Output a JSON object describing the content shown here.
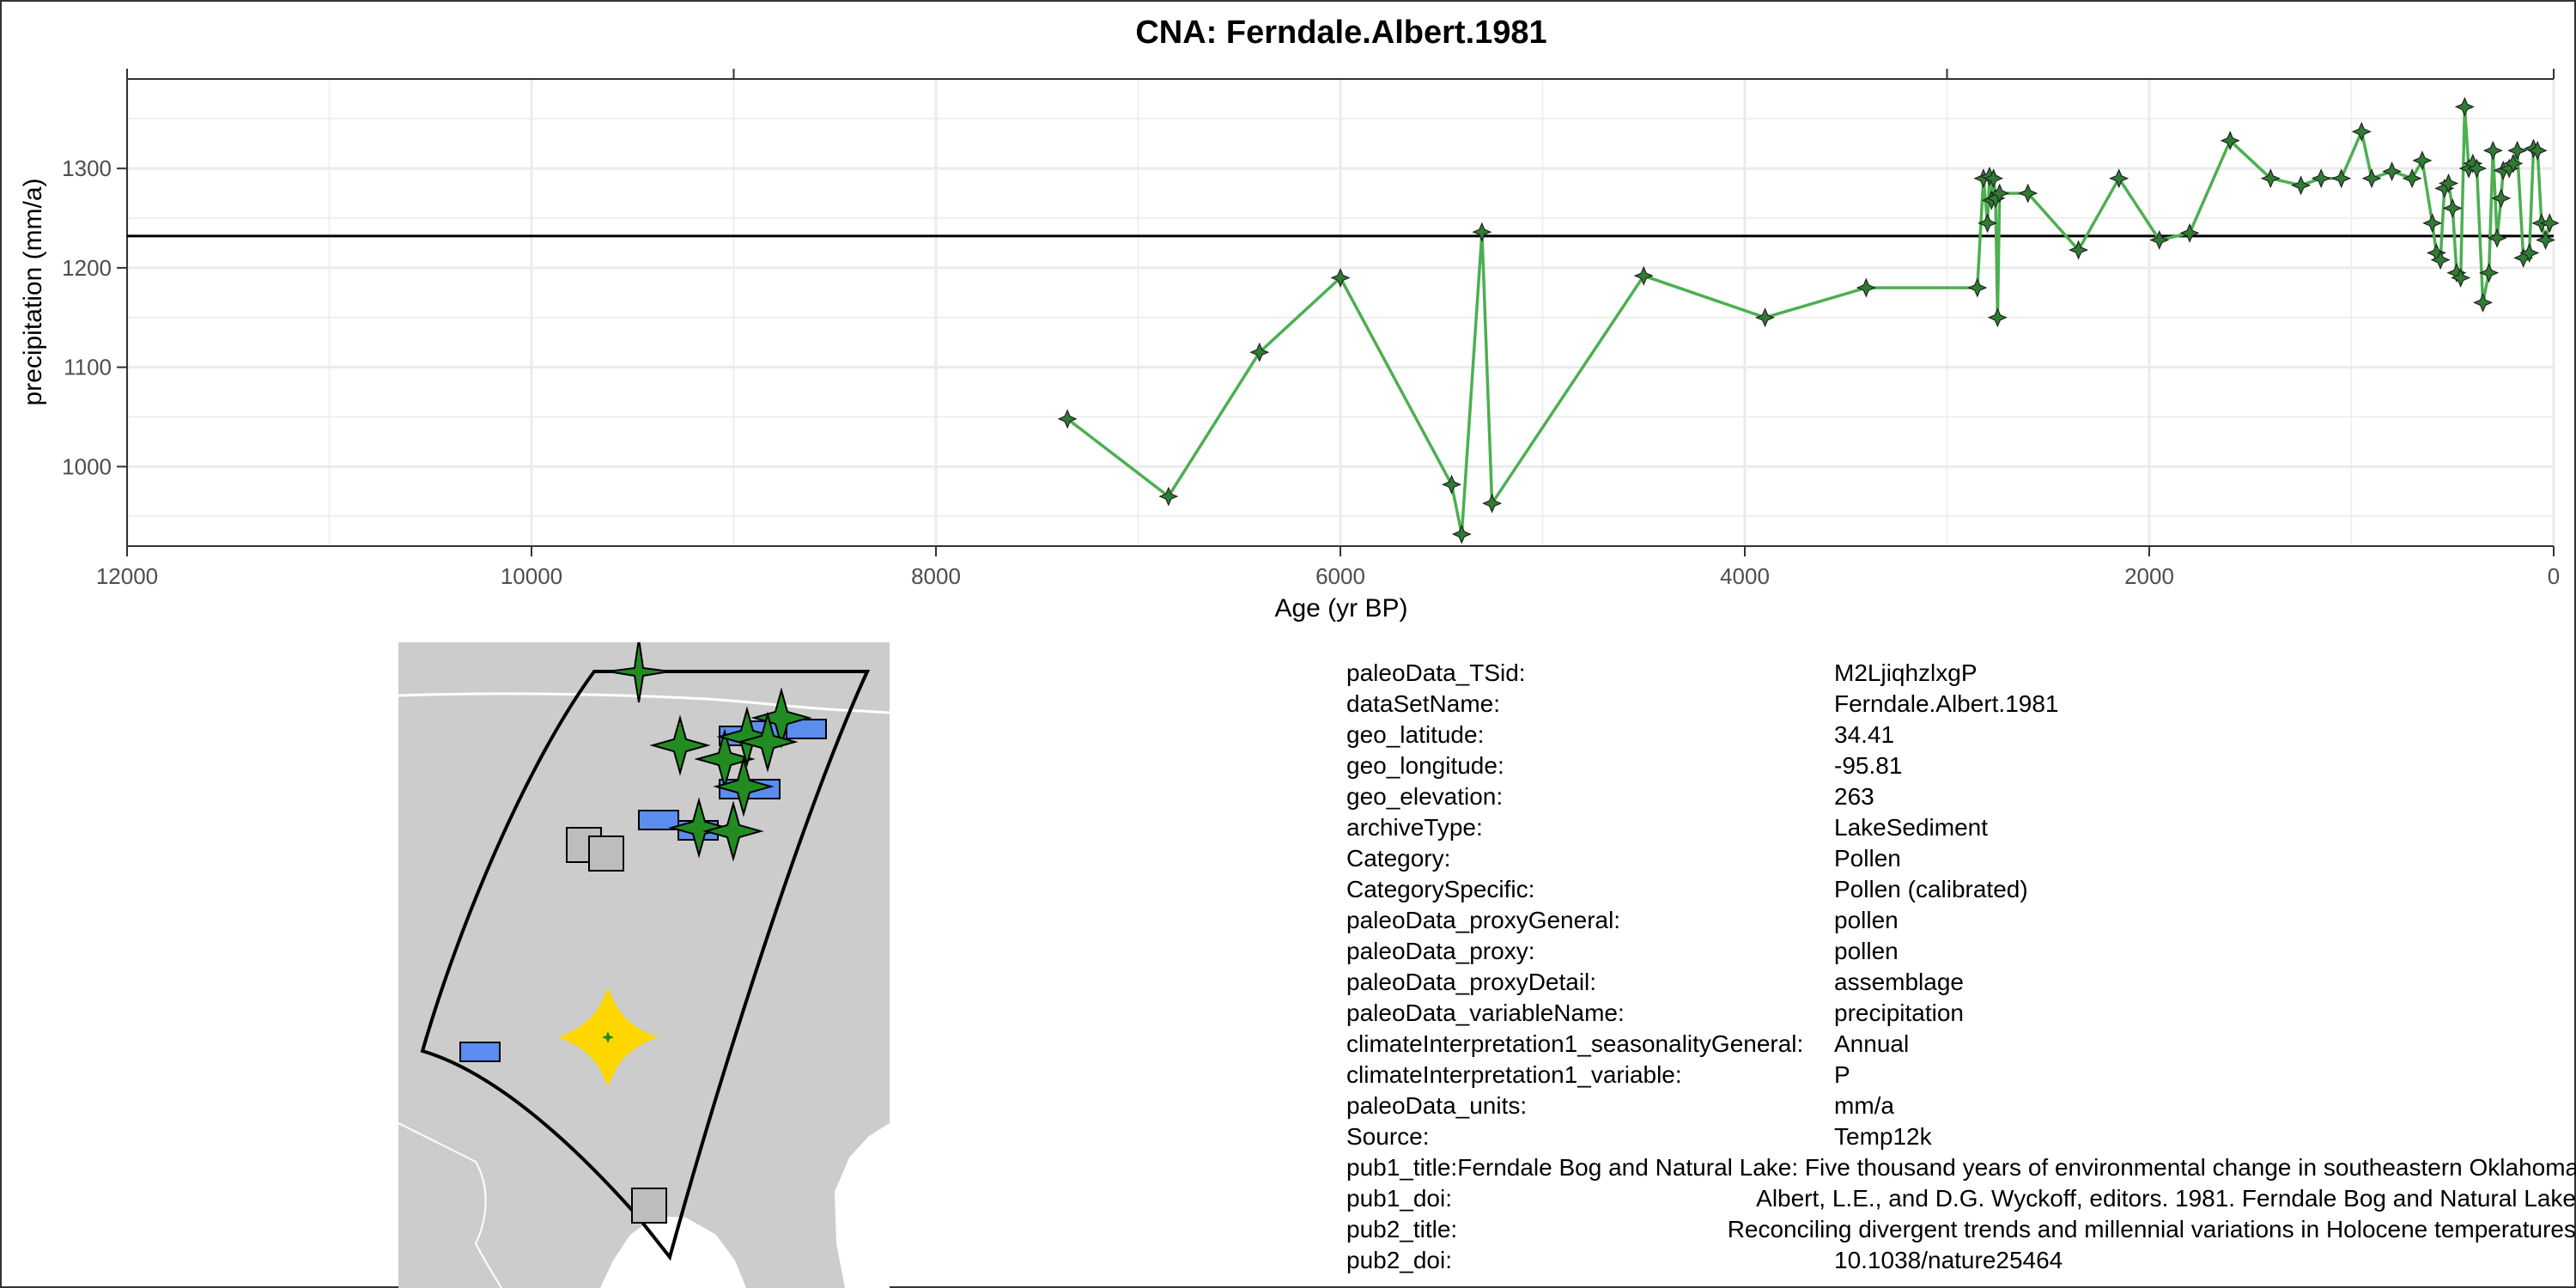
{
  "chart_data": {
    "type": "line",
    "title": "CNA: Ferndale.Albert.1981",
    "xlabel": "Age (yr BP)",
    "ylabel": "precipitation (mm/a)",
    "x_reversed": true,
    "xlim": [
      12000,
      0
    ],
    "ylim": [
      920,
      1390
    ],
    "x_ticks": [
      12000,
      10000,
      8000,
      6000,
      4000,
      2000,
      0
    ],
    "y_ticks": [
      1000,
      1100,
      1200,
      1300
    ],
    "top_axis_ticks": [
      12000,
      9000,
      3000,
      0
    ],
    "reference_line": 1232,
    "grid": true,
    "series_color": "#4caf50",
    "marker": "four-point-star",
    "marker_color": "#2e7d32",
    "series": [
      {
        "x": [
          7350,
          6850,
          6400,
          6000,
          5450,
          5400,
          5300,
          5250,
          4500,
          3900,
          3400,
          2850,
          2820,
          2800,
          2790,
          2780,
          2770,
          2760,
          2750,
          2740,
          2600,
          2350,
          2150,
          1950,
          1800,
          1600,
          1400,
          1250,
          1150,
          1050,
          950,
          900,
          800,
          700,
          650,
          600,
          580,
          560,
          540,
          520,
          500,
          480,
          460,
          440,
          420,
          400,
          380,
          350,
          320,
          300,
          280,
          260,
          250,
          220,
          200,
          180,
          150,
          120,
          100,
          80,
          60,
          40,
          20
        ],
        "y": [
          1048,
          970,
          1115,
          1190,
          982,
          932,
          1236,
          963,
          1192,
          1150,
          1180,
          1180,
          1290,
          1245,
          1292,
          1268,
          1290,
          1270,
          1150,
          1275,
          1275,
          1218,
          1290,
          1228,
          1235,
          1328,
          1290,
          1283,
          1290,
          1290,
          1337,
          1290,
          1297,
          1290,
          1308,
          1245,
          1215,
          1208,
          1280,
          1285,
          1260,
          1195,
          1190,
          1362,
          1300,
          1305,
          1300,
          1165,
          1195,
          1318,
          1230,
          1270,
          1298,
          1300,
          1305,
          1318,
          1210,
          1215,
          1320,
          1318,
          1245,
          1228,
          1245
        ]
      }
    ]
  },
  "metadata": {
    "rows": [
      {
        "key": "paleoData_TSid:",
        "value": "M2LjiqhzlxgP"
      },
      {
        "key": "dataSetName:",
        "value": "Ferndale.Albert.1981"
      },
      {
        "key": "geo_latitude:",
        "value": "34.41"
      },
      {
        "key": "geo_longitude:",
        "value": "-95.81"
      },
      {
        "key": "geo_elevation:",
        "value": "263"
      },
      {
        "key": "archiveType:",
        "value": "LakeSediment"
      },
      {
        "key": "Category:",
        "value": "Pollen"
      },
      {
        "key": "CategorySpecific:",
        "value": "Pollen (calibrated)"
      },
      {
        "key": "paleoData_proxyGeneral:",
        "value": "pollen"
      },
      {
        "key": "paleoData_proxy:",
        "value": "pollen"
      },
      {
        "key": "paleoData_proxyDetail:",
        "value": "assemblage"
      },
      {
        "key": "paleoData_variableName:",
        "value": "precipitation"
      },
      {
        "key": "climateInterpretation1_seasonalityGeneral:",
        "value": "Annual"
      },
      {
        "key": "climateInterpretation1_variable:",
        "value": "P"
      },
      {
        "key": "paleoData_units:",
        "value": "mm/a"
      },
      {
        "key": "Source:",
        "value": "Temp12k"
      },
      {
        "key": "pub1_title:",
        "value": "Ferndale Bog and Natural Lake: Five thousand years of environmental change in southeastern Oklahoma"
      },
      {
        "key": "pub1_doi:",
        "value": "Albert, L.E., and D.G. Wyckoff, editors. 1981. Ferndale Bog and Natural Lake"
      },
      {
        "key": "pub2_title:",
        "value": "Reconciling divergent trends and millennial variations in Holocene temperatures"
      },
      {
        "key": "pub2_doi:",
        "value": "10.1038/nature25464"
      }
    ]
  },
  "map": {
    "land_color": "#cccccc",
    "region_outline_color": "#000000",
    "highlight_color": "#ffd700",
    "site_colors": {
      "star": "#228b22",
      "rect": "#5b8def",
      "square": "#bdbdbd"
    }
  }
}
